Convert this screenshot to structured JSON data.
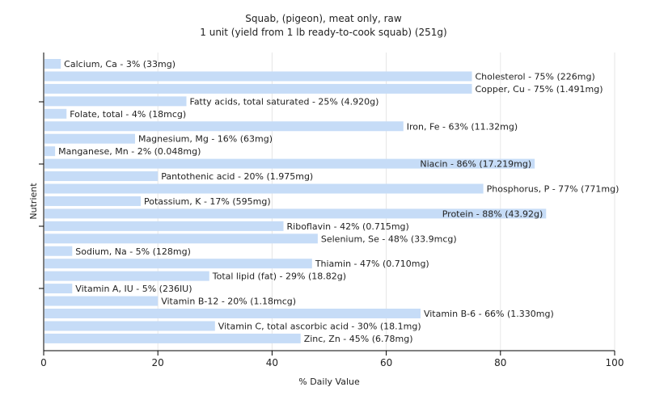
{
  "chart_data": {
    "type": "bar",
    "orientation": "horizontal",
    "title": "Squab, (pigeon), meat only, raw",
    "subtitle": "1 unit (yield from 1 lb ready-to-cook squab) (251g)",
    "xlabel": "% Daily Value",
    "ylabel": "Nutrient",
    "xlim": [
      0,
      100
    ],
    "xticks": [
      "0",
      "20",
      "40",
      "60",
      "80",
      "100"
    ],
    "grid": true,
    "bar_color": "#c6dcf7",
    "categories": [
      "Calcium, Ca",
      "Cholesterol",
      "Copper, Cu",
      "Fatty acids, total saturated",
      "Folate, total",
      "Iron, Fe",
      "Magnesium, Mg",
      "Manganese, Mn",
      "Niacin",
      "Pantothenic acid",
      "Phosphorus, P",
      "Potassium, K",
      "Protein",
      "Riboflavin",
      "Selenium, Se",
      "Sodium, Na",
      "Thiamin",
      "Total lipid (fat)",
      "Vitamin A, IU",
      "Vitamin B-12",
      "Vitamin B-6",
      "Vitamin C, total ascorbic acid",
      "Zinc, Zn"
    ],
    "values": [
      3,
      75,
      75,
      25,
      4,
      63,
      16,
      2,
      86,
      20,
      77,
      17,
      88,
      42,
      48,
      5,
      47,
      29,
      5,
      20,
      66,
      30,
      45
    ],
    "labels": [
      "Calcium, Ca - 3% (33mg)",
      "Cholesterol - 75% (226mg)",
      "Copper, Cu - 75% (1.491mg)",
      "Fatty acids, total saturated - 25% (4.920g)",
      "Folate, total - 4% (18mcg)",
      "Iron, Fe - 63% (11.32mg)",
      "Magnesium, Mg - 16% (63mg)",
      "Manganese, Mn - 2% (0.048mg)",
      "Niacin - 86% (17.219mg)",
      "Pantothenic acid - 20% (1.975mg)",
      "Phosphorus, P - 77% (771mg)",
      "Potassium, K - 17% (595mg)",
      "Protein - 88% (43.92g)",
      "Riboflavin - 42% (0.715mg)",
      "Selenium, Se - 48% (33.9mcg)",
      "Sodium, Na - 5% (128mg)",
      "Thiamin - 47% (0.710mg)",
      "Total lipid (fat) - 29% (18.82g)",
      "Vitamin A, IU - 5% (236IU)",
      "Vitamin B-12 - 20% (1.18mcg)",
      "Vitamin B-6 - 66% (1.330mg)",
      "Vitamin C, total ascorbic acid - 30% (18.1mg)",
      "Zinc, Zn - 45% (6.78mg)"
    ]
  }
}
